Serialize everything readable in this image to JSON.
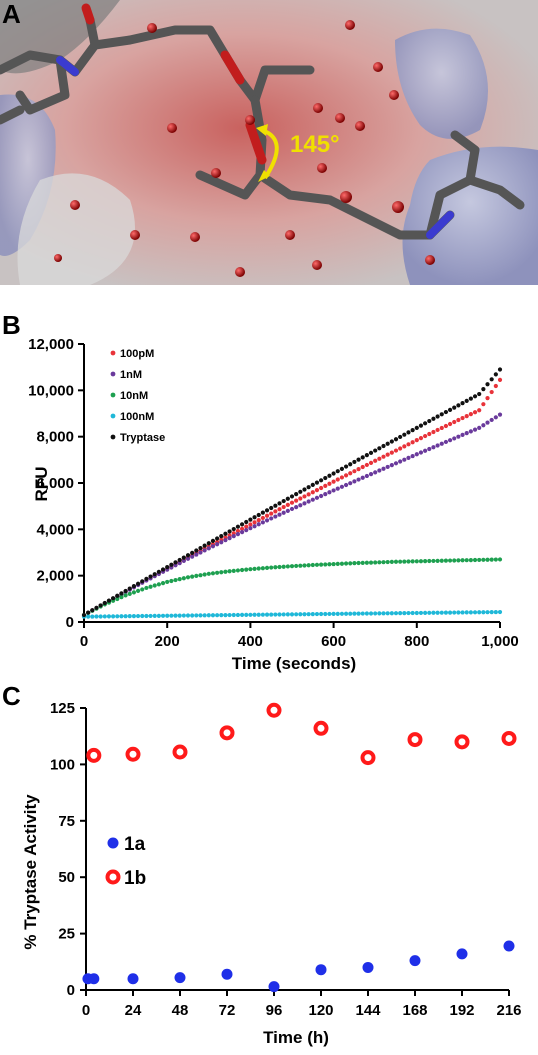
{
  "panels": {
    "a": {
      "letter": "A",
      "angle_label": "145°"
    },
    "b": {
      "letter": "B"
    },
    "c": {
      "letter": "C"
    }
  },
  "chart_data": [
    {
      "type": "scatter",
      "panel": "B",
      "xlabel": "Time (seconds)",
      "ylabel": "RFU",
      "xlim": [
        0,
        1000
      ],
      "ylim": [
        0,
        12000
      ],
      "xticks": [
        0,
        200,
        400,
        600,
        800,
        1000
      ],
      "xtick_labels": [
        "0",
        "200",
        "400",
        "600",
        "800",
        "1,000"
      ],
      "yticks": [
        0,
        2000,
        4000,
        6000,
        8000,
        10000,
        12000
      ],
      "ytick_labels": [
        "0",
        "2,000",
        "4,000",
        "6,000",
        "8,000",
        "10,000",
        "12,000"
      ],
      "legend_position": "top-left",
      "series": [
        {
          "name": "100pM",
          "color": "#e8333a",
          "x": [
            0,
            50,
            100,
            150,
            200,
            250,
            300,
            350,
            400,
            450,
            500,
            550,
            600,
            650,
            700,
            750,
            800,
            850,
            900,
            950,
            1000
          ],
          "y": [
            300,
            810,
            1310,
            1810,
            2290,
            2780,
            3260,
            3740,
            4210,
            4680,
            5150,
            5600,
            6060,
            6510,
            6960,
            7400,
            7850,
            8290,
            8720,
            9140,
            10450
          ]
        },
        {
          "name": "1nM",
          "color": "#6a3a9c",
          "x": [
            0,
            50,
            100,
            150,
            200,
            250,
            300,
            350,
            400,
            450,
            500,
            550,
            600,
            650,
            700,
            750,
            800,
            850,
            900,
            950,
            1000
          ],
          "y": [
            300,
            810,
            1300,
            1790,
            2260,
            2730,
            3180,
            3620,
            4050,
            4470,
            4880,
            5280,
            5680,
            6070,
            6460,
            6850,
            7240,
            7620,
            8000,
            8380,
            8950
          ]
        },
        {
          "name": "10nM",
          "color": "#1ea050",
          "x": [
            0,
            50,
            100,
            150,
            200,
            250,
            300,
            350,
            400,
            450,
            500,
            550,
            600,
            650,
            700,
            750,
            800,
            850,
            900,
            950,
            1000
          ],
          "y": [
            300,
            760,
            1150,
            1470,
            1730,
            1930,
            2080,
            2190,
            2280,
            2350,
            2410,
            2460,
            2500,
            2540,
            2570,
            2600,
            2620,
            2640,
            2660,
            2680,
            2700
          ]
        },
        {
          "name": "100nM",
          "color": "#1fb8d8",
          "x": [
            0,
            100,
            200,
            300,
            400,
            500,
            600,
            700,
            800,
            900,
            1000
          ],
          "y": [
            230,
            250,
            270,
            290,
            310,
            330,
            350,
            370,
            390,
            410,
            430
          ]
        },
        {
          "name": "Tryptase",
          "color": "#111111",
          "x": [
            0,
            50,
            100,
            150,
            200,
            250,
            300,
            350,
            400,
            450,
            500,
            550,
            600,
            650,
            700,
            750,
            800,
            850,
            900,
            950,
            1000
          ],
          "y": [
            300,
            820,
            1340,
            1860,
            2370,
            2880,
            3400,
            3910,
            4420,
            4920,
            5420,
            5920,
            6410,
            6910,
            7400,
            7890,
            8380,
            8870,
            9350,
            9840,
            10900
          ]
        }
      ]
    },
    {
      "type": "scatter",
      "panel": "C",
      "xlabel": "Time (h)",
      "ylabel": "% Tryptase Activity",
      "xlim": [
        0,
        216
      ],
      "ylim": [
        0,
        125
      ],
      "xticks": [
        0,
        24,
        48,
        72,
        96,
        120,
        144,
        168,
        192,
        216
      ],
      "yticks": [
        0,
        25,
        50,
        75,
        100,
        125
      ],
      "legend_position": "center-left",
      "series": [
        {
          "name": "1a",
          "color": "#1f2fe8",
          "marker": "filled-circle",
          "x": [
            1,
            4,
            24,
            48,
            72,
            96,
            120,
            144,
            168,
            192,
            216
          ],
          "y": [
            5,
            5,
            5,
            5.5,
            7,
            1.5,
            9,
            10,
            13,
            16,
            19.5
          ]
        },
        {
          "name": "1b",
          "color": "#ff1a1a",
          "marker": "open-circle",
          "x": [
            4,
            24,
            48,
            72,
            96,
            120,
            144,
            168,
            192,
            216
          ],
          "y": [
            104,
            104.5,
            105.5,
            114,
            124,
            116,
            103,
            111,
            110,
            111.5
          ]
        }
      ]
    }
  ]
}
